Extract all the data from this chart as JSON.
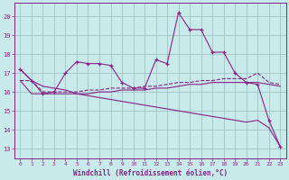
{
  "bg_color": "#c8eaea",
  "line_color": "#882288",
  "grid_color": "#99bbbb",
  "xlabel": "Windchill (Refroidissement éolien,°C)",
  "ylabel_ticks": [
    13,
    14,
    15,
    16,
    17,
    18,
    19,
    20
  ],
  "xlim": [
    -0.5,
    23.5
  ],
  "ylim": [
    12.5,
    20.7
  ],
  "xticks": [
    0,
    1,
    2,
    3,
    4,
    5,
    6,
    7,
    8,
    9,
    10,
    11,
    12,
    13,
    14,
    15,
    16,
    17,
    18,
    19,
    20,
    21,
    22,
    23
  ],
  "line1_x": [
    0,
    1,
    2,
    3,
    4,
    5,
    6,
    7,
    8,
    9,
    10,
    11,
    12,
    13,
    14,
    15,
    16,
    17,
    18,
    19,
    20,
    21,
    22,
    23
  ],
  "line1_y": [
    17.2,
    16.6,
    15.9,
    16.0,
    17.0,
    17.6,
    17.5,
    17.5,
    17.4,
    16.5,
    16.2,
    16.2,
    17.7,
    17.5,
    20.2,
    19.3,
    19.3,
    18.1,
    18.1,
    17.0,
    16.5,
    16.4,
    14.5,
    13.1
  ],
  "line2_x": [
    0,
    1,
    2,
    3,
    4,
    5,
    6,
    7,
    8,
    9,
    10,
    11,
    12,
    13,
    14,
    15,
    16,
    17,
    18,
    19,
    20,
    21,
    22,
    23
  ],
  "line2_y": [
    16.6,
    16.6,
    16.0,
    16.0,
    16.0,
    16.0,
    16.1,
    16.1,
    16.2,
    16.2,
    16.2,
    16.3,
    16.3,
    16.4,
    16.5,
    16.5,
    16.6,
    16.6,
    16.7,
    16.7,
    16.7,
    17.0,
    16.5,
    16.4
  ],
  "line3_x": [
    0,
    1,
    2,
    3,
    4,
    5,
    6,
    7,
    8,
    9,
    10,
    11,
    12,
    13,
    14,
    15,
    16,
    17,
    18,
    19,
    20,
    21,
    22,
    23
  ],
  "line3_y": [
    16.6,
    15.9,
    15.9,
    15.9,
    15.9,
    15.9,
    15.9,
    16.0,
    16.0,
    16.1,
    16.1,
    16.1,
    16.2,
    16.2,
    16.3,
    16.4,
    16.4,
    16.5,
    16.5,
    16.5,
    16.5,
    16.5,
    16.4,
    16.3
  ],
  "line4_x": [
    0,
    1,
    2,
    3,
    4,
    5,
    6,
    7,
    8,
    9,
    10,
    11,
    12,
    13,
    14,
    15,
    16,
    17,
    18,
    19,
    20,
    21,
    22,
    23
  ],
  "line4_y": [
    17.2,
    16.6,
    16.3,
    16.2,
    16.1,
    15.9,
    15.8,
    15.7,
    15.6,
    15.5,
    15.4,
    15.3,
    15.2,
    15.1,
    15.0,
    14.9,
    14.8,
    14.7,
    14.6,
    14.5,
    14.4,
    14.5,
    14.1,
    13.1
  ]
}
